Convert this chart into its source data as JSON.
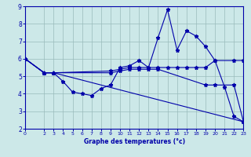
{
  "xlabel": "Graphe des temperatures (°c)",
  "xlim": [
    0,
    23
  ],
  "ylim": [
    2,
    9
  ],
  "yticks": [
    2,
    3,
    4,
    5,
    6,
    7,
    8,
    9
  ],
  "xticks": [
    0,
    2,
    3,
    4,
    5,
    6,
    7,
    8,
    9,
    10,
    11,
    12,
    13,
    14,
    15,
    16,
    17,
    18,
    19,
    20,
    21,
    22,
    23
  ],
  "background_color": "#cce8e8",
  "line_color": "#0000aa",
  "grid_color": "#99bbbb",
  "lines": [
    {
      "x": [
        0,
        2,
        3,
        4,
        5,
        6,
        7,
        8,
        9,
        10,
        11,
        12,
        13,
        14,
        15,
        16,
        17,
        18,
        19,
        20,
        21,
        22,
        23
      ],
      "y": [
        6.0,
        5.2,
        5.2,
        4.7,
        4.1,
        4.0,
        3.9,
        4.3,
        4.5,
        5.5,
        5.6,
        5.9,
        5.5,
        7.2,
        8.8,
        6.5,
        7.6,
        7.3,
        6.7,
        5.9,
        4.4,
        2.7,
        2.4
      ]
    },
    {
      "x": [
        0,
        2,
        3,
        9,
        10,
        11,
        12,
        13,
        14,
        15,
        16,
        17,
        18,
        19,
        20,
        22,
        23
      ],
      "y": [
        6.0,
        5.2,
        5.2,
        5.3,
        5.4,
        5.5,
        5.5,
        5.5,
        5.5,
        5.5,
        5.5,
        5.5,
        5.5,
        5.5,
        5.9,
        5.9,
        5.9
      ]
    },
    {
      "x": [
        0,
        2,
        3,
        9,
        10,
        11,
        12,
        13,
        14,
        19,
        20,
        22,
        23
      ],
      "y": [
        6.0,
        5.2,
        5.2,
        5.2,
        5.3,
        5.4,
        5.4,
        5.4,
        5.4,
        4.5,
        4.5,
        4.5,
        2.4
      ]
    },
    {
      "x": [
        0,
        2,
        3,
        23
      ],
      "y": [
        6.0,
        5.2,
        5.2,
        2.4
      ]
    }
  ]
}
